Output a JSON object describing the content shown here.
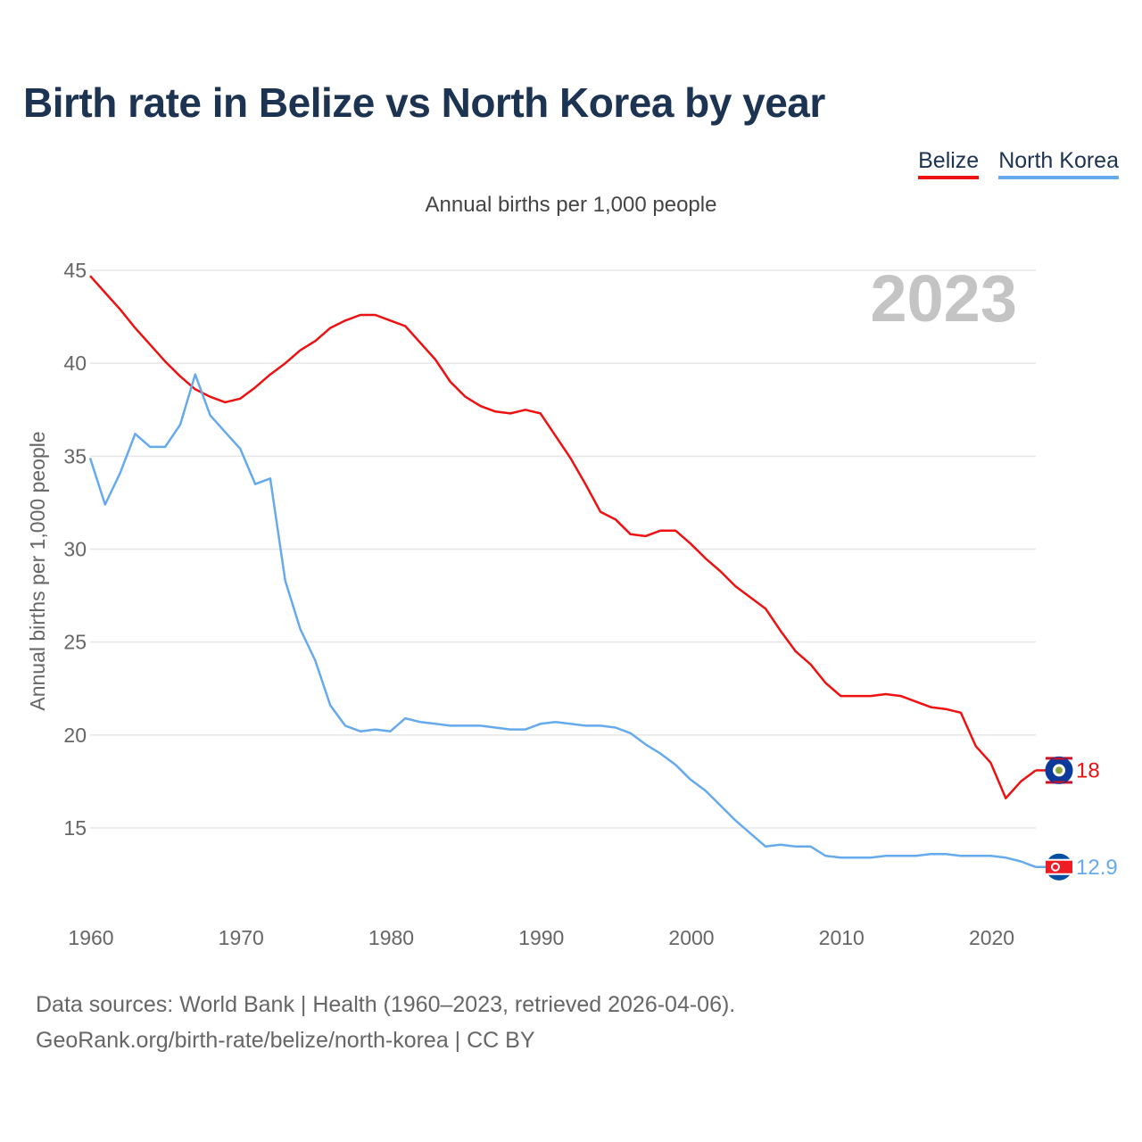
{
  "title": "Birth rate in Belize vs North Korea by year",
  "subtitle": "Annual births per 1,000 people",
  "year_watermark": "2023",
  "legend": [
    {
      "label": "Belize",
      "color": "#ee1111"
    },
    {
      "label": "North Korea",
      "color": "#66aaee"
    }
  ],
  "footer": {
    "line1": "Data sources: World Bank | Health (1960–2023, retrieved 2026-04-06).",
    "line2": "GeoRank.org/birth-rate/belize/north-korea | CC BY"
  },
  "chart_data": {
    "type": "line",
    "title": "Birth rate in Belize vs North Korea by year",
    "ylabel": "Annual births per 1,000 people",
    "xlabel": "",
    "xlim": [
      1960,
      2023
    ],
    "ylim": [
      11,
      45
    ],
    "yticks": [
      15,
      20,
      25,
      30,
      35,
      40,
      45
    ],
    "xticks": [
      1960,
      1970,
      1980,
      1990,
      2000,
      2010,
      2020
    ],
    "grid": true,
    "x": [
      1960,
      1961,
      1962,
      1963,
      1964,
      1965,
      1966,
      1967,
      1968,
      1969,
      1970,
      1971,
      1972,
      1973,
      1974,
      1975,
      1976,
      1977,
      1978,
      1979,
      1980,
      1981,
      1982,
      1983,
      1984,
      1985,
      1986,
      1987,
      1988,
      1989,
      1990,
      1991,
      1992,
      1993,
      1994,
      1995,
      1996,
      1997,
      1998,
      1999,
      2000,
      2001,
      2002,
      2003,
      2004,
      2005,
      2006,
      2007,
      2008,
      2009,
      2010,
      2011,
      2012,
      2013,
      2014,
      2015,
      2016,
      2017,
      2018,
      2019,
      2020,
      2021,
      2022,
      2023
    ],
    "series": [
      {
        "name": "Belize",
        "color": "#ee1111",
        "end_label": "18",
        "values": [
          44.7,
          43.8,
          42.9,
          41.9,
          41.0,
          40.1,
          39.3,
          38.6,
          38.2,
          37.9,
          38.1,
          38.7,
          39.4,
          40.0,
          40.7,
          41.2,
          41.9,
          42.3,
          42.6,
          42.6,
          42.3,
          42.0,
          41.1,
          40.2,
          39.0,
          38.2,
          37.7,
          37.4,
          37.3,
          37.5,
          37.3,
          36.1,
          34.9,
          33.5,
          32.0,
          31.6,
          30.8,
          30.7,
          31.0,
          31.0,
          30.3,
          29.5,
          28.8,
          28.0,
          27.4,
          26.8,
          25.6,
          24.5,
          23.8,
          22.8,
          22.1,
          22.1,
          22.1,
          22.2,
          22.1,
          21.8,
          21.5,
          21.4,
          21.2,
          19.4,
          18.5,
          16.6,
          17.5,
          18.1
        ]
      },
      {
        "name": "North Korea",
        "color": "#66aaee",
        "end_label": "12.9",
        "values": [
          34.9,
          32.4,
          34.1,
          36.2,
          35.5,
          35.5,
          36.7,
          39.4,
          37.2,
          36.3,
          35.4,
          33.5,
          33.8,
          28.3,
          25.7,
          24.0,
          21.6,
          20.5,
          20.2,
          20.3,
          20.2,
          20.9,
          20.7,
          20.6,
          20.5,
          20.5,
          20.5,
          20.4,
          20.3,
          20.3,
          20.6,
          20.7,
          20.6,
          20.5,
          20.5,
          20.4,
          20.1,
          19.5,
          19.0,
          18.4,
          17.6,
          17.0,
          16.2,
          15.4,
          14.7,
          14.0,
          14.1,
          14.0,
          14.0,
          13.5,
          13.4,
          13.4,
          13.4,
          13.5,
          13.5,
          13.5,
          13.6,
          13.6,
          13.5,
          13.5,
          13.5,
          13.4,
          13.2,
          12.9
        ]
      }
    ]
  }
}
